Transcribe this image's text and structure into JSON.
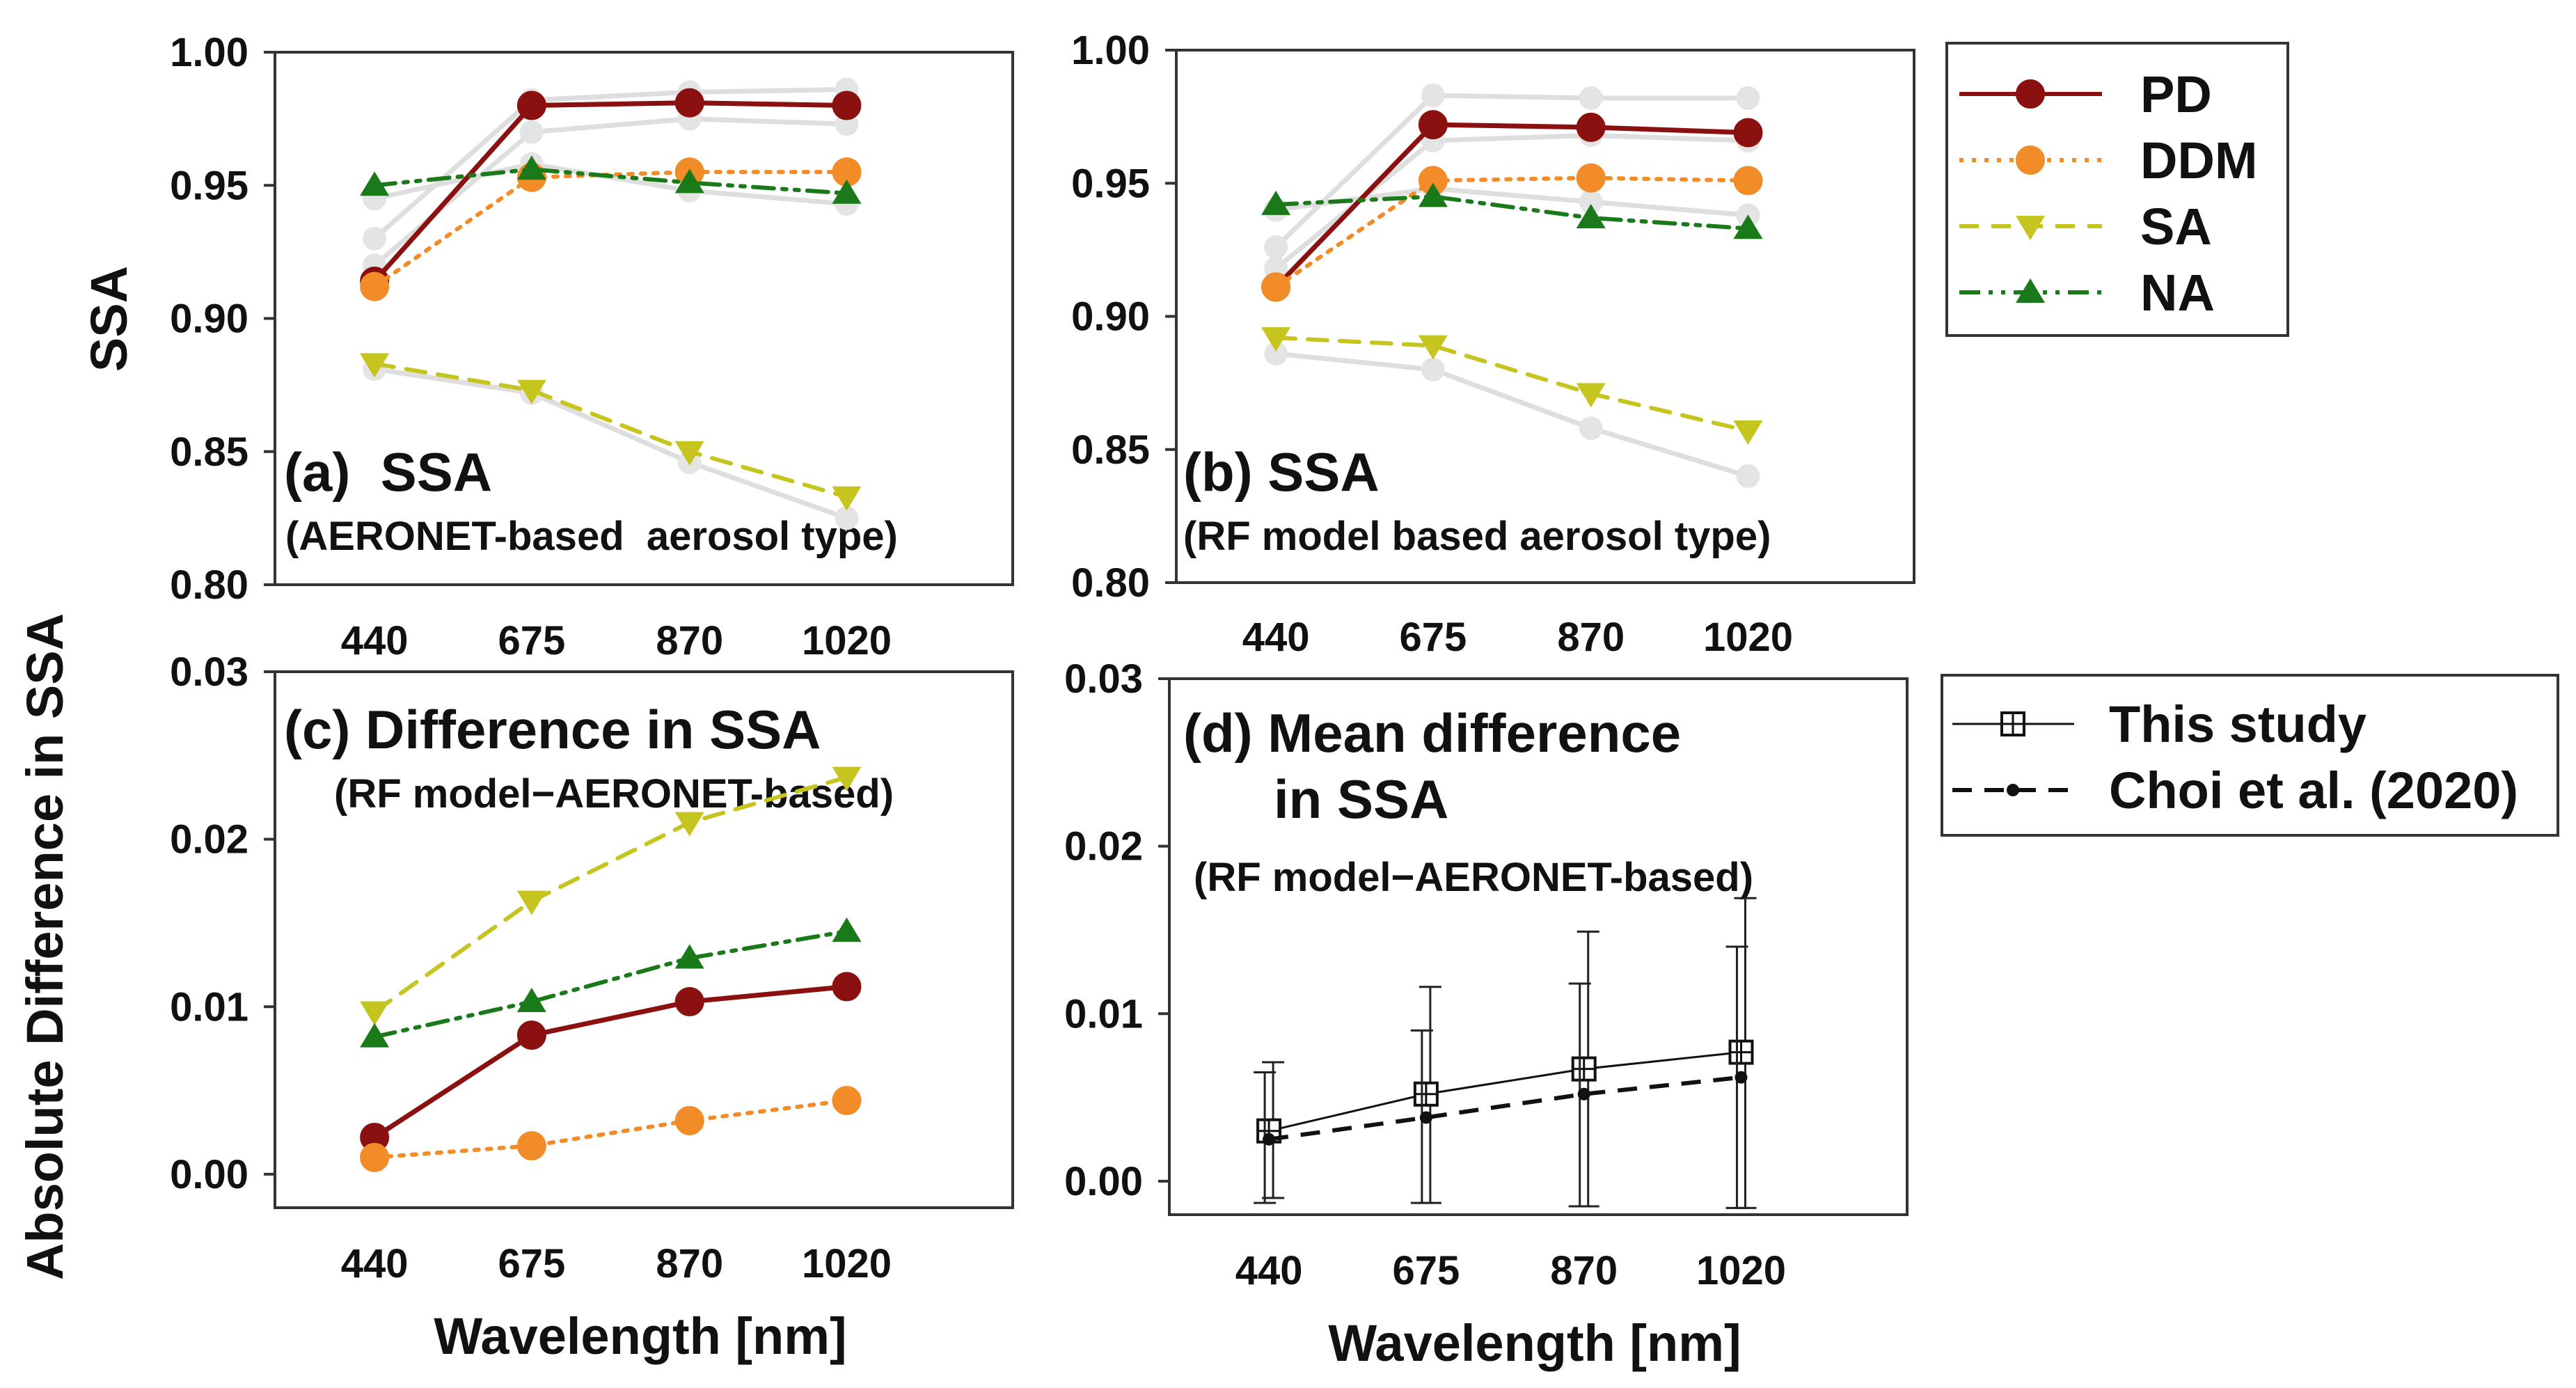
{
  "figure": {
    "x_axis_label": "Wavelength [nm]",
    "legend_main": [
      {
        "name": "PD",
        "color": "#8b1010",
        "dash": "solid",
        "marker": "circle"
      },
      {
        "name": "DDM",
        "color": "#f28c28",
        "dash": "dotted",
        "marker": "circle"
      },
      {
        "name": "SA",
        "color": "#c6c41e",
        "dash": "dashed",
        "marker": "triangle-down"
      },
      {
        "name": "NA",
        "color": "#1a7a1a",
        "dash": "dashdotdot",
        "marker": "triangle-up"
      }
    ],
    "legend_diff": [
      {
        "name": "This study",
        "color": "#111111",
        "dash": "solid",
        "marker": "square-plus"
      },
      {
        "name": "Choi et al. (2020)",
        "color": "#111111",
        "dash": "dashed",
        "marker": "dot"
      }
    ]
  },
  "chart_data": [
    {
      "id": "a",
      "type": "line",
      "title": "(a)  SSA",
      "subtitle": "(AERONET-based  aerosol type)",
      "ylabel": "SSA",
      "xlabel": "",
      "categories": [
        "440",
        "675",
        "870",
        "1020"
      ],
      "ylim": [
        0.8,
        1.0
      ],
      "yticks": [
        "0.80",
        "0.85",
        "0.90",
        "0.95",
        "1.00"
      ],
      "series": [
        {
          "name": "PD",
          "values": [
            0.914,
            0.98,
            0.981,
            0.98
          ]
        },
        {
          "name": "DDM",
          "values": [
            0.912,
            0.953,
            0.955,
            0.955
          ]
        },
        {
          "name": "SA",
          "values": [
            0.883,
            0.873,
            0.85,
            0.833
          ]
        },
        {
          "name": "NA",
          "values": [
            0.95,
            0.956,
            0.951,
            0.947
          ]
        }
      ],
      "faded_series": [
        {
          "values": [
            0.93,
            0.982,
            0.985,
            0.986
          ]
        },
        {
          "values": [
            0.92,
            0.97,
            0.975,
            0.973
          ]
        },
        {
          "values": [
            0.945,
            0.958,
            0.948,
            0.943
          ]
        },
        {
          "values": [
            0.881,
            0.872,
            0.846,
            0.825
          ]
        }
      ]
    },
    {
      "id": "b",
      "type": "line",
      "title": "(b) SSA",
      "subtitle": "(RF model based aerosol type)",
      "ylabel": "",
      "xlabel": "",
      "categories": [
        "440",
        "675",
        "870",
        "1020"
      ],
      "ylim": [
        0.8,
        1.0
      ],
      "yticks": [
        "0.80",
        "0.85",
        "0.90",
        "0.95",
        "1.00"
      ],
      "series": [
        {
          "name": "PD",
          "values": [
            0.911,
            0.972,
            0.971,
            0.969
          ]
        },
        {
          "name": "DDM",
          "values": [
            0.911,
            0.951,
            0.952,
            0.951
          ]
        },
        {
          "name": "SA",
          "values": [
            0.892,
            0.889,
            0.871,
            0.857
          ]
        },
        {
          "name": "NA",
          "values": [
            0.942,
            0.945,
            0.937,
            0.933
          ]
        }
      ],
      "faded_series": [
        {
          "values": [
            0.926,
            0.983,
            0.982,
            0.982
          ]
        },
        {
          "values": [
            0.918,
            0.966,
            0.968,
            0.966
          ]
        },
        {
          "values": [
            0.94,
            0.948,
            0.943,
            0.938
          ]
        },
        {
          "values": [
            0.886,
            0.88,
            0.858,
            0.84
          ]
        }
      ]
    },
    {
      "id": "c",
      "type": "line",
      "title": "(c) Difference in SSA",
      "subtitle": "(RF model−AERONET-based)",
      "ylabel": "Absolute Difference in SSA",
      "xlabel": "Wavelength [nm]",
      "categories": [
        "440",
        "675",
        "870",
        "1020"
      ],
      "ylim": [
        -0.002,
        0.03
      ],
      "yticks": [
        "0.00",
        "0.01",
        "0.02",
        "0.03"
      ],
      "series": [
        {
          "name": "PD",
          "values": [
            0.0022,
            0.0083,
            0.0103,
            0.0112
          ]
        },
        {
          "name": "DDM",
          "values": [
            0.001,
            0.0017,
            0.0032,
            0.0044
          ]
        },
        {
          "name": "SA",
          "values": [
            0.0097,
            0.0163,
            0.021,
            0.0237
          ]
        },
        {
          "name": "NA",
          "values": [
            0.0082,
            0.0103,
            0.0129,
            0.0145
          ]
        }
      ]
    },
    {
      "id": "d",
      "type": "line",
      "title_line1": "(d) Mean difference",
      "title_line2": "in SSA",
      "subtitle": "(RF model−AERONET-based)",
      "ylabel": "",
      "xlabel": "Wavelength [nm]",
      "categories": [
        "440",
        "675",
        "870",
        "1020"
      ],
      "ylim": [
        -0.002,
        0.03
      ],
      "yticks": [
        "0.00",
        "0.01",
        "0.02",
        "0.03"
      ],
      "series": [
        {
          "name": "This study",
          "values": [
            0.003,
            0.0052,
            0.0067,
            0.0077
          ],
          "err_low": [
            -0.001,
            -0.0013,
            -0.0015,
            -0.0016
          ],
          "err_high": [
            0.0071,
            0.0116,
            0.0149,
            0.0169
          ]
        },
        {
          "name": "Choi et al. (2020)",
          "values": [
            0.0025,
            0.0038,
            0.0052,
            0.0062
          ],
          "err_low": [
            -0.0013,
            -0.0013,
            -0.0015,
            -0.0016
          ],
          "err_high": [
            0.0065,
            0.009,
            0.0118,
            0.014
          ]
        }
      ]
    }
  ]
}
